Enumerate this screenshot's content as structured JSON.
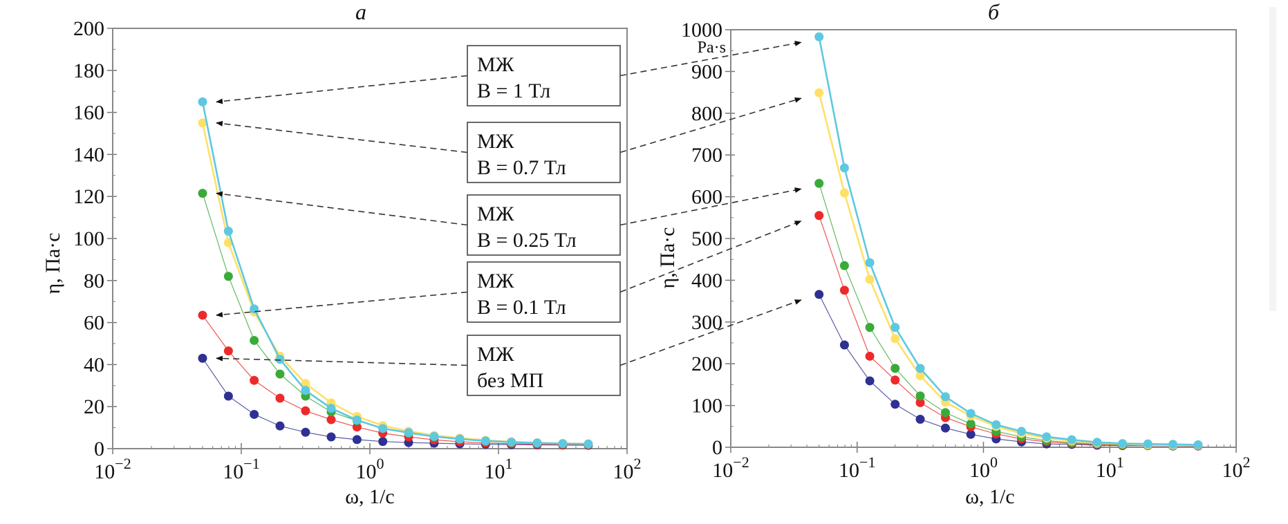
{
  "chart_data": [
    {
      "type": "line",
      "panel": "a",
      "title": "а",
      "xlabel": "ω, 1/с",
      "ylabel": "η, Па·с",
      "xscale": "log",
      "xlim": [
        0.01,
        100
      ],
      "ylim": [
        0,
        200
      ],
      "xticks": [
        0.01,
        0.1,
        1,
        10,
        100
      ],
      "xtick_labels": [
        {
          "base": "10",
          "exp": "−2"
        },
        {
          "base": "10",
          "exp": "−1"
        },
        {
          "base": "10",
          "exp": "0"
        },
        {
          "base": "10",
          "exp": "1"
        },
        {
          "base": "10",
          "exp": "2"
        }
      ],
      "yticks": [
        0,
        20,
        40,
        60,
        80,
        100,
        120,
        140,
        160,
        180,
        200
      ],
      "ytick_labels": [
        "0",
        "20",
        "40",
        "60",
        "80",
        "100",
        "120",
        "140",
        "160",
        "180",
        "200"
      ],
      "grid": false,
      "legend_position": "right (annotation boxes with arrows)",
      "x": [
        0.05,
        0.0794,
        0.126,
        0.2,
        0.316,
        0.5,
        0.794,
        1.26,
        2,
        3.16,
        5,
        7.94,
        12.6,
        20,
        31.6,
        50
      ],
      "series": [
        {
          "name": "МЖ без МП",
          "color": "#2e3192",
          "values": [
            43,
            25,
            16.3,
            10.8,
            7.8,
            5.6,
            4.3,
            3.4,
            2.9,
            2.6,
            2.3,
            2.1,
            1.9,
            1.8,
            1.7,
            1.6
          ]
        },
        {
          "name": "МЖ B = 0.1 Тл",
          "color": "#ed2a2a",
          "values": [
            63.5,
            46.5,
            32.5,
            24,
            18,
            13.8,
            10.3,
            7.4,
            5.6,
            4.2,
            3.3,
            2.7,
            2.3,
            2.1,
            1.9,
            1.8
          ]
        },
        {
          "name": "МЖ B = 0.25 Тл",
          "color": "#3aaa3a",
          "values": [
            121.5,
            82,
            51.5,
            35.5,
            25,
            17.5,
            13.3,
            9.6,
            7.3,
            5.6,
            4.4,
            3.5,
            2.9,
            2.5,
            2.3,
            2.1
          ]
        },
        {
          "name": "МЖ B = 0.7 Тл",
          "color": "#ffe066",
          "values": [
            155,
            98,
            65,
            44,
            31,
            21.8,
            15.3,
            11,
            8.3,
            6.3,
            5,
            4,
            3.3,
            2.8,
            2.5,
            2.3
          ]
        },
        {
          "name": "МЖ B = 1 Тл",
          "color": "#5ec8e0",
          "values": [
            165,
            103.5,
            66.5,
            42.5,
            27.7,
            19.2,
            13.6,
            9.6,
            7.6,
            5.8,
            4.6,
            3.7,
            3.1,
            2.7,
            2.4,
            2.2
          ]
        }
      ]
    },
    {
      "type": "line",
      "panel": "b",
      "title": "б",
      "xlabel": "ω, 1/с",
      "ylabel": "η, Па·с",
      "unit_note": "Pa·s",
      "xscale": "log",
      "xlim": [
        0.01,
        100
      ],
      "ylim": [
        0,
        1000
      ],
      "xticks": [
        0.01,
        0.1,
        1,
        10,
        100
      ],
      "xtick_labels": [
        {
          "base": "10",
          "exp": "−2"
        },
        {
          "base": "10",
          "exp": "−1"
        },
        {
          "base": "10",
          "exp": "0"
        },
        {
          "base": "10",
          "exp": "1"
        },
        {
          "base": "10",
          "exp": "2"
        }
      ],
      "yticks": [
        0,
        100,
        200,
        300,
        400,
        500,
        600,
        700,
        800,
        900,
        1000
      ],
      "ytick_labels": [
        "0",
        "100",
        "200",
        "300",
        "400",
        "500",
        "600",
        "700",
        "800",
        "900",
        "1000"
      ],
      "grid": false,
      "legend_position": "shared with panel a via arrows",
      "x": [
        0.05,
        0.0794,
        0.126,
        0.2,
        0.316,
        0.5,
        0.794,
        1.26,
        2,
        3.16,
        5,
        7.94,
        12.6,
        20,
        31.6,
        50
      ],
      "series": [
        {
          "name": "МЖ без МП",
          "color": "#2e3192",
          "values": [
            366,
            245,
            159,
            103,
            67,
            46,
            31,
            20,
            13,
            8,
            7,
            5,
            4,
            4,
            3,
            3
          ]
        },
        {
          "name": "МЖ B = 0.1 Тл",
          "color": "#ed2a2a",
          "values": [
            555,
            376,
            218,
            161,
            107,
            71,
            49,
            32,
            20,
            13,
            9,
            7,
            5,
            4,
            4,
            3
          ]
        },
        {
          "name": "МЖ B = 0.25 Тл",
          "color": "#3aaa3a",
          "values": [
            632,
            435,
            287,
            189,
            123,
            83,
            56,
            38,
            25,
            16,
            11,
            8,
            6,
            5,
            4,
            4
          ]
        },
        {
          "name": "МЖ B = 0.7 Тл",
          "color": "#ffe066",
          "values": [
            849,
            609,
            402,
            260,
            171,
            108,
            75,
            50,
            33,
            22,
            15,
            10,
            8,
            6,
            5,
            5
          ]
        },
        {
          "name": "МЖ B = 1 Тл",
          "color": "#5ec8e0",
          "values": [
            983,
            669,
            442,
            287,
            189,
            121,
            81,
            54,
            38,
            25,
            18,
            12,
            9,
            8,
            7,
            6
          ]
        }
      ]
    }
  ],
  "legend": [
    {
      "line1": "МЖ",
      "line2": "B = 1 Тл",
      "series_index": 4
    },
    {
      "line1": "МЖ",
      "line2": "B = 0.7 Тл",
      "series_index": 3
    },
    {
      "line1": "МЖ",
      "line2": "B = 0.25 Тл",
      "series_index": 2
    },
    {
      "line1": "МЖ",
      "line2": "B = 0.1 Тл",
      "series_index": 1
    },
    {
      "line1": "МЖ",
      "line2": "без МП",
      "series_index": 0
    }
  ]
}
